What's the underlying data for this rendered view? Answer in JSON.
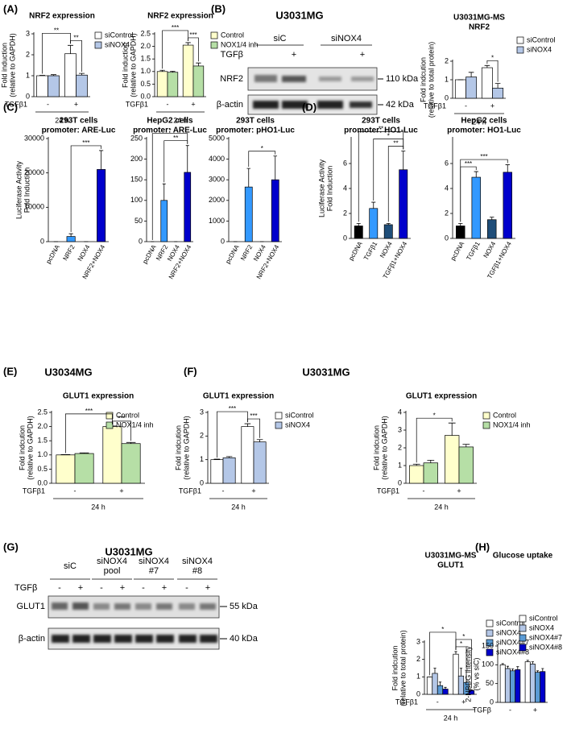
{
  "panels": [
    "(A)",
    "(B)",
    "(C)",
    "(D)",
    "(E)",
    "(F)",
    "(G)",
    "(H)"
  ],
  "headings": [
    "U3034MG",
    "U3031MG"
  ],
  "blots": [
    {
      "title": "U3031MG",
      "treatment": "TGFβ",
      "groups": [
        {
          "label": [
            "siC"
          ],
          "signs": [
            "+"
          ]
        },
        {
          "label": [
            "siNOX4"
          ],
          "signs": [
            "+"
          ]
        }
      ],
      "rows": [
        {
          "protein": "NRF2",
          "size": "110 kDa"
        },
        {
          "protein": "β-actin",
          "size": "42 kDa"
        }
      ]
    },
    {
      "title": "U3031MG",
      "treatment": "TGFβ",
      "groups": [
        {
          "label": [
            "siC"
          ],
          "signs": [
            "-",
            "+"
          ]
        },
        {
          "label": [
            "siNOX4",
            "pool"
          ],
          "signs": [
            "-",
            "+"
          ]
        },
        {
          "label": [
            "siNOX4",
            "#7"
          ],
          "signs": [
            "-",
            "+"
          ]
        },
        {
          "label": [
            "siNOX4",
            "#8"
          ],
          "signs": [
            "-",
            "+"
          ]
        }
      ],
      "rows": [
        {
          "protein": "GLUT1",
          "size": "55 kDa"
        },
        {
          "protein": "β-actin",
          "size": "40 kDa"
        }
      ]
    }
  ],
  "chart_data": [
    {
      "type": "bar",
      "title": "NRF2 expression",
      "ylabel": [
        "Fold induction",
        "(relative to GAPDH)"
      ],
      "xlabel": "TGFβ1",
      "group_label": "24 h",
      "categories": [
        "-",
        "+"
      ],
      "ylim": [
        0,
        3
      ],
      "yticks": [
        0,
        1,
        2,
        3
      ],
      "series": [
        {
          "name": "siControl",
          "color": "#ffffff",
          "values": [
            1.0,
            2.05
          ],
          "errors": [
            0.02,
            0.4
          ]
        },
        {
          "name": "siNOX4",
          "color": "#b4c7e7",
          "values": [
            1.0,
            1.03
          ],
          "errors": [
            0.05,
            0.08
          ]
        }
      ],
      "brackets": [
        {
          "text": "**",
          "from": [
            1,
            0
          ],
          "to": [
            1,
            1
          ]
        },
        {
          "text": "**",
          "from": [
            0,
            0
          ],
          "to": [
            1,
            0
          ]
        }
      ]
    },
    {
      "type": "bar",
      "title": "NRF2 expression",
      "ylabel": [
        "Fold induction",
        "(relative to GAPDH)"
      ],
      "xlabel": "TGFβ1",
      "group_label": "24 h",
      "categories": [
        "-",
        "+"
      ],
      "ylim": [
        0,
        2.5
      ],
      "yticks": [
        {
          "value": 0,
          "label": "0.0"
        },
        {
          "value": 0.5,
          "label": "0.5"
        },
        {
          "value": 1,
          "label": "1.0"
        },
        {
          "value": 1.5,
          "label": "1.5"
        },
        {
          "value": 2,
          "label": "2.0"
        },
        {
          "value": 2.5,
          "label": "2.5"
        }
      ],
      "series": [
        {
          "name": "Control",
          "color": "#ffffcc",
          "values": [
            1.0,
            2.05
          ],
          "errors": [
            0.05,
            0.1
          ]
        },
        {
          "name": "NOX1/4 inh",
          "color": "#b6dfa6",
          "values": [
            0.97,
            1.22
          ],
          "errors": [
            0.04,
            0.12
          ]
        }
      ],
      "brackets": [
        {
          "text": "***",
          "from": [
            1,
            0
          ],
          "to": [
            1,
            1
          ]
        },
        {
          "text": "***",
          "from": [
            0,
            0
          ],
          "to": [
            1,
            0
          ]
        }
      ]
    },
    {
      "type": "bar",
      "title": [
        "U3031MG-MS",
        "NRF2"
      ],
      "ylabel": [
        "Fold indcution",
        "(relative to total protein)"
      ],
      "xlabel": "TGFβ1",
      "group_label": "24 h",
      "categories": [
        "-",
        "+"
      ],
      "ylim": [
        0,
        2
      ],
      "yticks": [
        0,
        1,
        2
      ],
      "series": [
        {
          "name": "siControl",
          "color": "#ffffff",
          "values": [
            1.0,
            1.65
          ],
          "errors": [
            0,
            0.12
          ]
        },
        {
          "name": "siNOX4",
          "color": "#b4c7e7",
          "values": [
            1.15,
            0.55
          ],
          "errors": [
            0.25,
            0.25
          ]
        }
      ],
      "brackets": [
        {
          "text": "*",
          "from": [
            1,
            0
          ],
          "to": [
            1,
            1
          ]
        }
      ]
    },
    {
      "type": "bar",
      "title": [
        "293T cells",
        "promoter: ARE-Luc"
      ],
      "ylabel": [
        "Luciferase Activity",
        "Fold Induction"
      ],
      "categories": [
        "pcDNA",
        "NRF2",
        "NOX4",
        "NRF2+NOX4"
      ],
      "ylim": [
        0,
        30000
      ],
      "yticks": [
        0,
        10000,
        20000,
        30000
      ],
      "bar_colors": [
        "#000000",
        "#3399ff",
        "#1f4e79",
        "#0000cc"
      ],
      "series": [
        {
          "values": [
            0,
            1500,
            0,
            21000
          ],
          "errors": [
            0,
            800,
            0,
            5500
          ]
        }
      ],
      "brackets": [
        {
          "text": "***",
          "from": [
            1,
            0
          ],
          "to": [
            3,
            0
          ]
        }
      ]
    },
    {
      "type": "bar",
      "title": [
        "HepG2 cells",
        "promoter: ARE-Luc"
      ],
      "categories": [
        "pcDNA",
        "NRF2",
        "NOX4",
        "NRF2+NOX4"
      ],
      "ylim": [
        0,
        250
      ],
      "yticks": [
        0,
        50,
        100,
        150,
        200,
        250
      ],
      "bar_colors": [
        "#000000",
        "#3399ff",
        "#1f4e79",
        "#0000cc"
      ],
      "series": [
        {
          "values": [
            0,
            100,
            0,
            168
          ],
          "errors": [
            0,
            40,
            0,
            65
          ]
        }
      ],
      "brackets": [
        {
          "text": "**",
          "from": [
            1,
            0
          ],
          "to": [
            3,
            0
          ]
        },
        {
          "text": "*",
          "from": [
            0,
            0
          ],
          "to": [
            3,
            0
          ]
        }
      ]
    },
    {
      "type": "bar",
      "title": [
        "293T cells",
        "promoter: pHO1-Luc"
      ],
      "categories": [
        "pcDNA",
        "NRF2",
        "NOX4",
        "NRF2+NOX4"
      ],
      "ylim": [
        0,
        5000
      ],
      "yticks": [
        0,
        1000,
        2000,
        3000,
        4000,
        5000
      ],
      "bar_colors": [
        "#000000",
        "#3399ff",
        "#1f4e79",
        "#0000cc"
      ],
      "series": [
        {
          "values": [
            0,
            2650,
            0,
            3000
          ],
          "errors": [
            0,
            900,
            0,
            1150
          ]
        }
      ],
      "brackets": [
        {
          "text": "*",
          "from": [
            1,
            0
          ],
          "to": [
            3,
            0
          ]
        }
      ]
    },
    {
      "type": "bar",
      "title": [
        "293T cells",
        "promoter: HO1-Luc"
      ],
      "ylabel": [
        "Luciferase Activity",
        "Fold Induction"
      ],
      "categories": [
        "pcDNA",
        "TGFβ1",
        "NOX4",
        "TGFβ1+NOX4"
      ],
      "ylim": [
        0,
        8
      ],
      "yticks": [
        0,
        2,
        4,
        6
      ],
      "bar_colors": [
        "#000000",
        "#3399ff",
        "#1f4e79",
        "#0000cc"
      ],
      "series": [
        {
          "values": [
            1.0,
            2.4,
            1.1,
            5.5
          ],
          "errors": [
            0.2,
            0.5,
            0.1,
            1.5
          ]
        }
      ],
      "brackets": [
        {
          "text": "**",
          "from": [
            2,
            0
          ],
          "to": [
            3,
            0
          ]
        },
        {
          "text": "*",
          "from": [
            1,
            0
          ],
          "to": [
            3,
            0
          ]
        },
        {
          "text": "**",
          "from": [
            0,
            0
          ],
          "to": [
            3,
            0
          ]
        }
      ]
    },
    {
      "type": "bar",
      "title": [
        "HepG2 cells",
        "promoter: HO1-Luc"
      ],
      "categories": [
        "pcDNA",
        "TGFβ1",
        "NOX4",
        "TGFβ1+NOX4"
      ],
      "ylim": [
        0,
        8
      ],
      "yticks": [
        0,
        2,
        4,
        6
      ],
      "bar_colors": [
        "#000000",
        "#3399ff",
        "#1f4e79",
        "#0000cc"
      ],
      "series": [
        {
          "values": [
            1.0,
            4.9,
            1.5,
            5.3
          ],
          "errors": [
            0.2,
            0.45,
            0.2,
            0.6
          ]
        }
      ],
      "brackets": [
        {
          "text": "***",
          "from": [
            0,
            0
          ],
          "to": [
            1,
            0
          ]
        },
        {
          "text": "***",
          "from": [
            0,
            0
          ],
          "to": [
            3,
            0
          ]
        }
      ]
    },
    {
      "type": "bar",
      "title": "GLUT1 expression",
      "ylabel": [
        "Fold indcution",
        "(relative to GAPDH)"
      ],
      "xlabel": "TGFβ1",
      "group_label": "24 h",
      "categories": [
        "-",
        "+"
      ],
      "ylim": [
        0,
        2.5
      ],
      "yticks": [
        {
          "value": 0,
          "label": "0.0"
        },
        {
          "value": 0.5,
          "label": "0.5"
        },
        {
          "value": 1,
          "label": "1.0"
        },
        {
          "value": 1.5,
          "label": "1.5"
        },
        {
          "value": 2,
          "label": "2.0"
        },
        {
          "value": 2.5,
          "label": "2.5"
        }
      ],
      "series": [
        {
          "name": "Control",
          "color": "#ffffcc",
          "values": [
            1.0,
            2.0
          ],
          "errors": [
            0.01,
            0.02
          ]
        },
        {
          "name": "NOX1/4 inh",
          "color": "#b6dfa6",
          "values": [
            1.05,
            1.4
          ],
          "errors": [
            0.02,
            0.04
          ]
        }
      ],
      "brackets": [
        {
          "text": "***",
          "from": [
            1,
            0
          ],
          "to": [
            1,
            1
          ]
        },
        {
          "text": "***",
          "from": [
            0,
            0
          ],
          "to": [
            1,
            0
          ]
        }
      ]
    },
    {
      "type": "bar",
      "title": "GLUT1 expression",
      "ylabel": [
        "Fold indcution",
        "(relative to GAPDH)"
      ],
      "xlabel": "TGFβ1",
      "group_label": "24 h",
      "categories": [
        "-",
        "+"
      ],
      "ylim": [
        0,
        3
      ],
      "yticks": [
        0,
        1,
        2,
        3
      ],
      "series": [
        {
          "name": "siControl",
          "color": "#ffffff",
          "values": [
            1.0,
            2.4
          ],
          "errors": [
            0.02,
            0.12
          ]
        },
        {
          "name": "siNOX4",
          "color": "#b4c7e7",
          "values": [
            1.08,
            1.75
          ],
          "errors": [
            0.05,
            0.1
          ]
        }
      ],
      "brackets": [
        {
          "text": "***",
          "from": [
            1,
            0
          ],
          "to": [
            1,
            1
          ]
        },
        {
          "text": "***",
          "from": [
            0,
            0
          ],
          "to": [
            1,
            0
          ]
        }
      ]
    },
    {
      "type": "bar",
      "title": "GLUT1 expression",
      "ylabel": [
        "Fold indcution",
        "(relative to GAPDH)"
      ],
      "xlabel": "TGFβ1",
      "group_label": "24 h",
      "categories": [
        "-",
        "+"
      ],
      "ylim": [
        0,
        4
      ],
      "yticks": [
        0,
        1,
        2,
        3,
        4
      ],
      "series": [
        {
          "name": "Control",
          "color": "#ffffcc",
          "values": [
            1.0,
            2.7
          ],
          "errors": [
            0.08,
            0.7
          ]
        },
        {
          "name": "NOX1/4 inh",
          "color": "#b6dfa6",
          "values": [
            1.15,
            2.05
          ],
          "errors": [
            0.15,
            0.15
          ]
        }
      ],
      "brackets": [
        {
          "text": "*",
          "from": [
            0,
            0
          ],
          "to": [
            1,
            0
          ]
        }
      ]
    },
    {
      "type": "bar",
      "title": [
        "U3031MG-MS",
        "GLUT1"
      ],
      "ylabel": [
        "Fold indcution",
        "(relative to total protein)"
      ],
      "xlabel": "TGFβ1",
      "group_label": "24 h",
      "categories": [
        "-",
        "+"
      ],
      "ylim": [
        0,
        3
      ],
      "yticks": [
        0,
        1,
        2,
        3
      ],
      "series": [
        {
          "name": "siControl",
          "color": "#ffffff",
          "values": [
            1.0,
            2.3
          ],
          "errors": [
            0,
            0.15
          ]
        },
        {
          "name": "siNOX4",
          "color": "#b4c7e7",
          "values": [
            1.2,
            1.05
          ],
          "errors": [
            0.3,
            0.45
          ]
        },
        {
          "name": "siNOX4#7",
          "color": "#5b9bd5",
          "values": [
            0.5,
            0.68
          ],
          "errors": [
            0.2,
            0.7
          ]
        },
        {
          "name": "siNOX4#8",
          "color": "#0000cc",
          "values": [
            0.3,
            0.22
          ],
          "errors": [
            0.1,
            0.04
          ]
        }
      ],
      "brackets": [
        {
          "text": "*",
          "from": [
            1,
            0
          ],
          "to": [
            1,
            2
          ]
        },
        {
          "text": "*",
          "from": [
            1,
            0
          ],
          "to": [
            1,
            3
          ]
        },
        {
          "text": "*",
          "from": [
            0,
            0
          ],
          "to": [
            1,
            0
          ]
        }
      ]
    },
    {
      "type": "bar",
      "title": "Glucose uptake",
      "ylabel": [
        "2-NBDG intensity",
        "(% vs siC)"
      ],
      "xlabel": "TGFβ",
      "categories": [
        "-",
        "+"
      ],
      "ylim": [
        0,
        150
      ],
      "yticks": [
        0,
        50,
        100,
        150
      ],
      "series": [
        {
          "name": "siControl",
          "color": "#ffffff",
          "values": [
            100,
            108
          ],
          "errors": [
            3,
            4
          ]
        },
        {
          "name": "siNOX4",
          "color": "#b4c7e7",
          "values": [
            90,
            102
          ],
          "errors": [
            6,
            6
          ]
        },
        {
          "name": "siNOX4#7",
          "color": "#5b9bd5",
          "values": [
            84,
            80
          ],
          "errors": [
            5,
            4
          ]
        },
        {
          "name": "siNOX4#8",
          "color": "#0000cc",
          "values": [
            87,
            82
          ],
          "errors": [
            8,
            8
          ]
        }
      ],
      "brackets": []
    }
  ]
}
